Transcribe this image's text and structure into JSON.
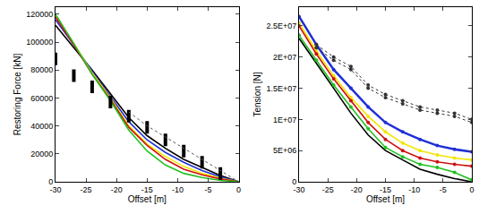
{
  "chart_data": [
    {
      "type": "line",
      "x_label": "Offset [m]",
      "y_label": "Restoring Force [kN]",
      "x": [
        -30,
        -27,
        -24,
        -21,
        -18,
        -15,
        -12,
        -9,
        -6,
        -3,
        0
      ],
      "xlim": [
        -30,
        0
      ],
      "xticks": [
        -30,
        -25,
        -20,
        -15,
        -10,
        -5,
        0
      ],
      "ylim": [
        0,
        125000
      ],
      "yticks": [
        0,
        20000,
        40000,
        60000,
        80000,
        100000,
        120000
      ],
      "grid": false,
      "series": [
        {
          "color": "#000000",
          "marker": "none",
          "line_style": "solid",
          "values": [
            112000,
            96000,
            80000,
            63000,
            46000,
            33000,
            24000,
            16000,
            10000,
            4500,
            0
          ]
        },
        {
          "color": "#1f2fd6",
          "marker": "none",
          "line_style": "solid",
          "values": [
            116000,
            98000,
            79000,
            61000,
            43000,
            30000,
            21000,
            14000,
            8000,
            3500,
            0
          ]
        },
        {
          "color": "#f2e600",
          "marker": "none",
          "line_style": "solid",
          "values": [
            119000,
            99000,
            78000,
            60000,
            40000,
            27000,
            18000,
            11000,
            6000,
            2500,
            0
          ]
        },
        {
          "color": "#d01010",
          "marker": "none",
          "line_style": "solid",
          "values": [
            118000,
            98000,
            77000,
            59000,
            39000,
            26000,
            16000,
            9000,
            5000,
            2000,
            0
          ]
        },
        {
          "color": "#20c020",
          "marker": "none",
          "line_style": "solid",
          "values": [
            120000,
            99000,
            77000,
            58000,
            37000,
            22000,
            12000,
            6000,
            3000,
            1000,
            0
          ]
        },
        {
          "color": "#000000",
          "marker": "line-ns",
          "line_style": "none",
          "values": [
            88000,
            76000,
            68000,
            57000,
            47000,
            39000,
            30000,
            22000,
            14000,
            6000,
            null
          ]
        },
        {
          "color": "#555555",
          "marker": "none",
          "line_style": "dot",
          "values": [
            null,
            null,
            null,
            null,
            50000,
            40000,
            32000,
            24000,
            16000,
            8000,
            0
          ]
        }
      ]
    },
    {
      "type": "line",
      "x_label": "Offset [m]",
      "y_label": "Tension [N]",
      "x": [
        -30,
        -27,
        -24,
        -21,
        -18,
        -15,
        -12,
        -9,
        -6,
        -3,
        0
      ],
      "xlim": [
        -30,
        0
      ],
      "xticks": [
        -30,
        -25,
        -20,
        -15,
        -10,
        -5,
        0
      ],
      "ylim": [
        0,
        28000000
      ],
      "yticks": [
        0,
        {
          "value": 5000000,
          "label": "5E+06"
        },
        {
          "value": 10000000,
          "label": "1E+07"
        },
        {
          "value": 15000000,
          "label": "1.5E+07"
        },
        {
          "value": 20000000,
          "label": "2E+07"
        },
        {
          "value": 25000000,
          "label": "2.5E+07"
        }
      ],
      "grid": false,
      "series": [
        {
          "color": "#000000",
          "marker": "none",
          "line_style": "solid",
          "values": [
            23000000,
            19000000,
            15000000,
            11000000,
            7500000,
            5000000,
            3500000,
            2000000,
            1200000,
            500000,
            0
          ]
        },
        {
          "color": "#1f2fd6",
          "marker": "circle",
          "line_style": "solid",
          "values": [
            26500000,
            22000000,
            18000000,
            15000000,
            12000000,
            9500000,
            8000000,
            6800000,
            5800000,
            5200000,
            4800000
          ]
        },
        {
          "color": "#f2e600",
          "marker": "circle",
          "line_style": "solid",
          "values": [
            25500000,
            21000000,
            17000000,
            13500000,
            10500000,
            8000000,
            6200000,
            5000000,
            4300000,
            3800000,
            3500000
          ]
        },
        {
          "color": "#d01010",
          "marker": "circle",
          "line_style": "solid",
          "values": [
            25000000,
            20500000,
            16500000,
            13000000,
            9500000,
            6800000,
            5000000,
            3800000,
            3200000,
            2800000,
            2500000
          ]
        },
        {
          "color": "#20c020",
          "marker": "circle",
          "line_style": "solid",
          "values": [
            23500000,
            19500000,
            15500000,
            12000000,
            8500000,
            5500000,
            4000000,
            2800000,
            2300000,
            1500000,
            300000
          ]
        },
        {
          "color": "#333333",
          "marker": "circle",
          "line_style": "dot",
          "values": [
            null,
            22000000,
            20000000,
            18500000,
            15500000,
            14000000,
            13000000,
            12000000,
            11500000,
            11000000,
            10000000
          ]
        },
        {
          "color": "#333333",
          "marker": "circle",
          "line_style": "dot",
          "values": [
            null,
            21500000,
            19500000,
            18000000,
            15000000,
            13500000,
            12500000,
            11500000,
            11000000,
            10500000,
            9500000
          ]
        }
      ]
    }
  ]
}
